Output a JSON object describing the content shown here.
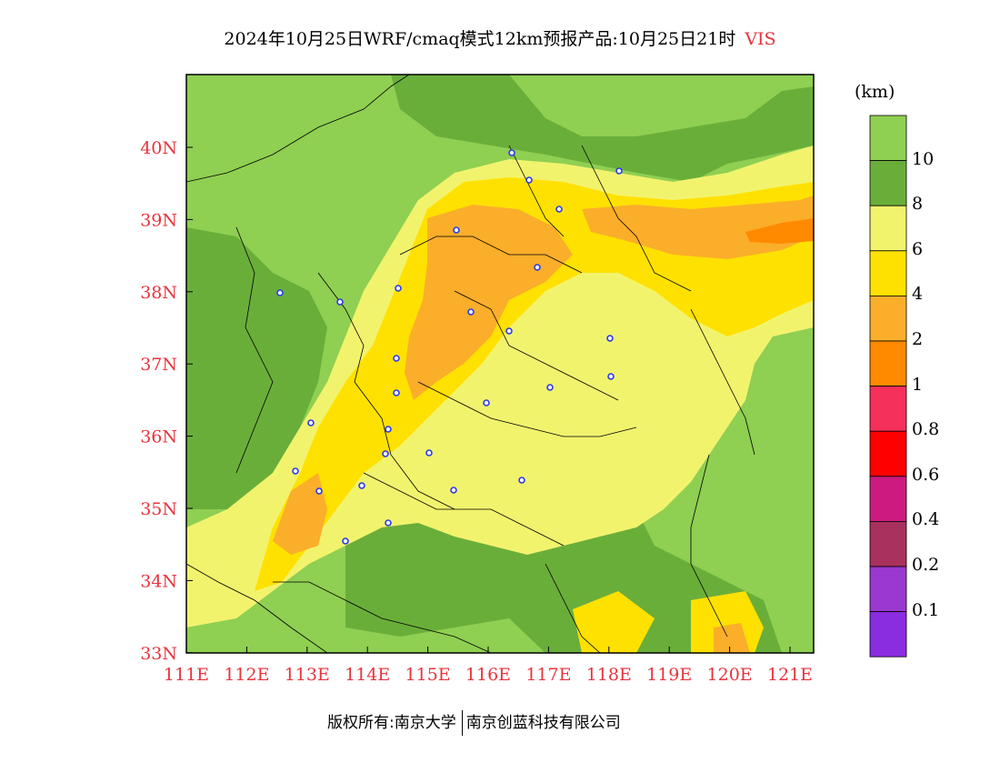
{
  "title": {
    "main": "2024年10月25日WRF/cmaq模式12km预报产品:10月25日21时",
    "variable": "VIS"
  },
  "map": {
    "lon_ticks": [
      "111E",
      "112E",
      "113E",
      "114E",
      "115E",
      "116E",
      "117E",
      "118E",
      "119E",
      "120E",
      "121E"
    ],
    "lat_ticks": [
      "40N",
      "39N",
      "38N",
      "37N",
      "36N",
      "35N",
      "34N",
      "33N"
    ],
    "colors": {
      "gt10": "#8fcf52",
      "8_10": "#6aae3a",
      "6_8": "#f2f36d",
      "4_6": "#ffe100",
      "2_4": "#fbae2a",
      "1_2": "#ff8a00",
      "tick_label": "#e8343e",
      "city_marker": "#2a3be8"
    }
  },
  "colorbar": {
    "unit": "(km)",
    "labels": [
      "10",
      "8",
      "6",
      "4",
      "2",
      "1",
      "0.8",
      "0.6",
      "0.4",
      "0.2",
      "0.1"
    ],
    "colors": [
      "#8fcf52",
      "#6aae3a",
      "#f2f36d",
      "#ffe100",
      "#fbae2a",
      "#ff8a00",
      "#f5305a",
      "#ff0000",
      "#cc1a80",
      "#a9315e",
      "#9b38cf",
      "#8a2ce0"
    ]
  },
  "footer": {
    "left": "版权所有:南京大学",
    "right": "南京创蓝科技有限公司"
  }
}
